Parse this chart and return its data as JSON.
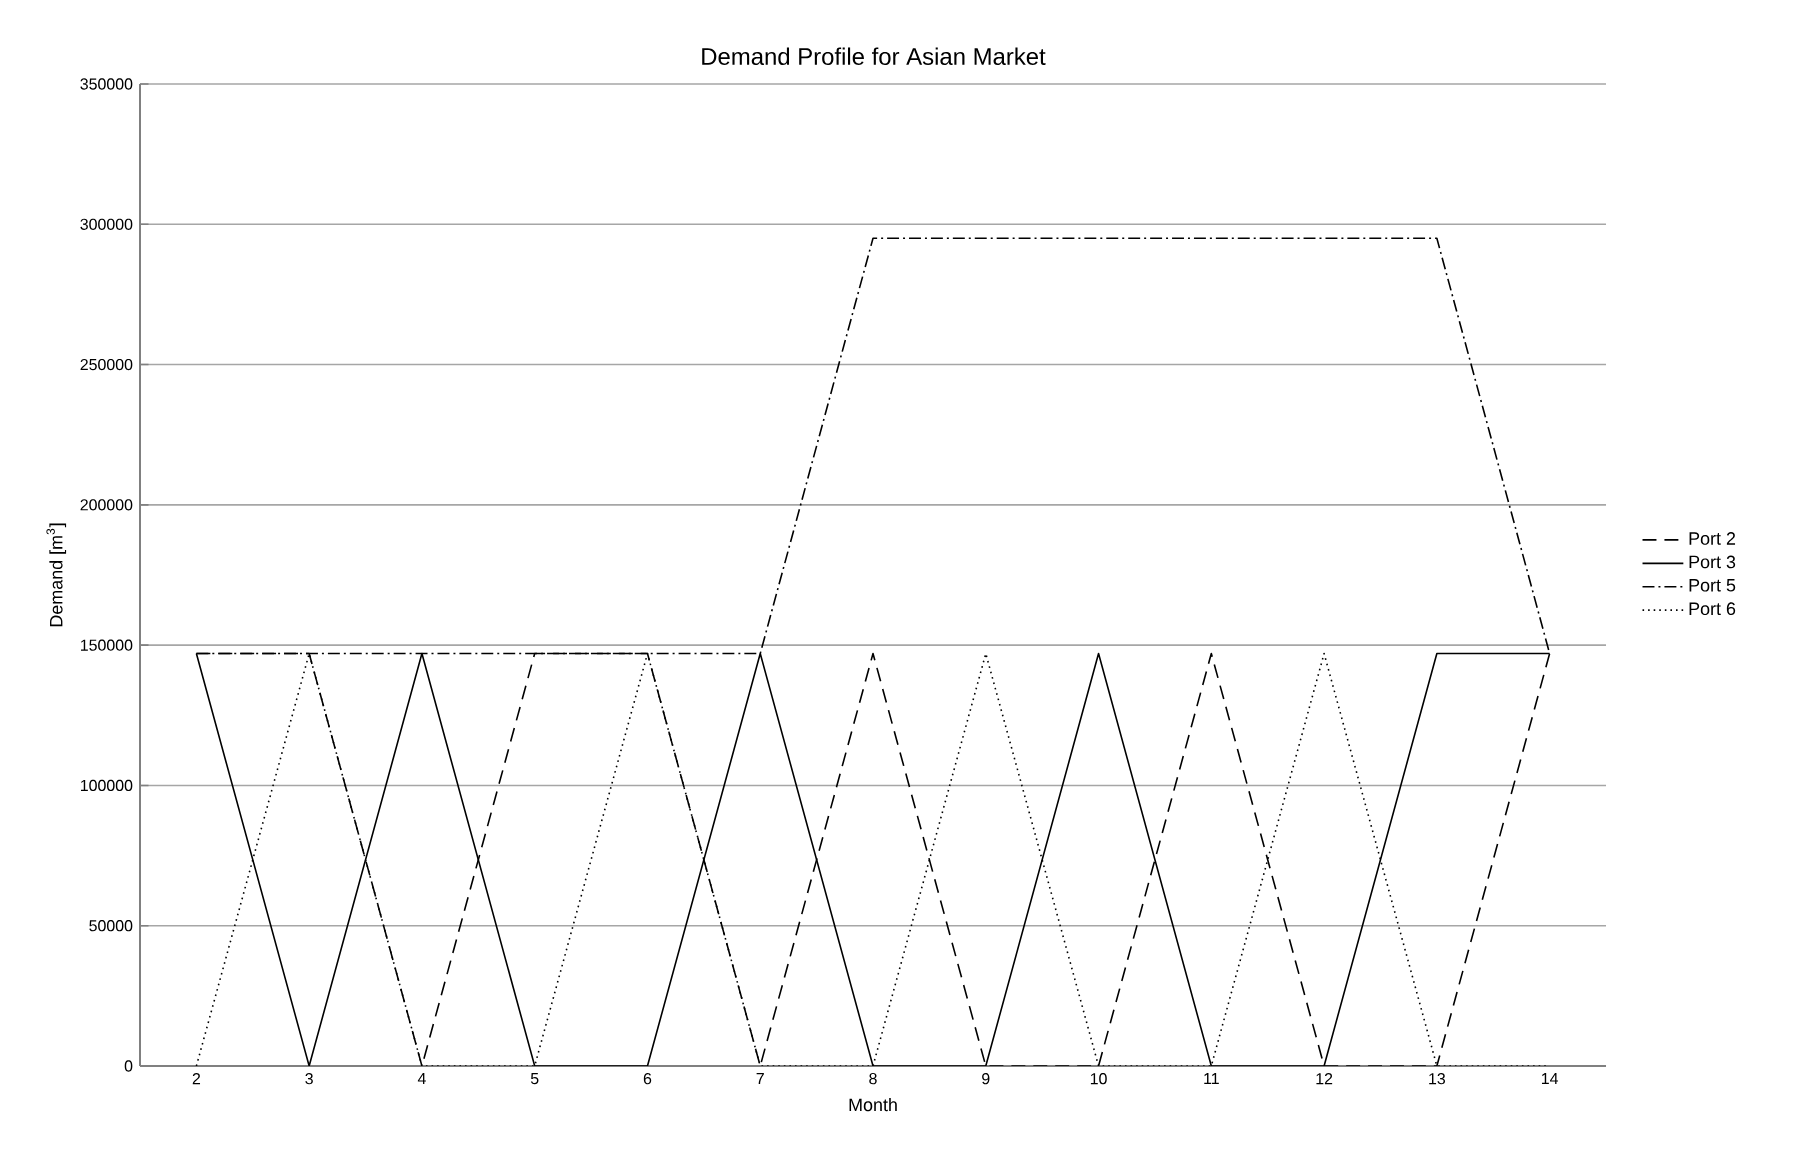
{
  "chart_data": {
    "type": "line",
    "title": "Demand Profile for Asian Market",
    "xlabel": "Month",
    "ylabel": "Demand [m$^{3}$]",
    "categories": [
      "2",
      "3",
      "4",
      "5",
      "6",
      "7",
      "8",
      "9",
      "10",
      "11",
      "12",
      "13",
      "14"
    ],
    "series": [
      {
        "name": "Port 2",
        "color": "#000000",
        "line_style": "dashed",
        "values": [
          147000,
          147000,
          0,
          147000,
          147000,
          0,
          147000,
          0,
          0,
          147000,
          0,
          0,
          147000
        ]
      },
      {
        "name": "Port 3",
        "color": "#000000",
        "line_style": "solid",
        "values": [
          147000,
          0,
          147000,
          0,
          0,
          147000,
          0,
          0,
          147000,
          0,
          0,
          147000,
          147000
        ]
      },
      {
        "name": "Port 5",
        "color": "#000000",
        "line_style": "dashdot",
        "values": [
          147000,
          147000,
          147000,
          147000,
          147000,
          147000,
          295000,
          295000,
          295000,
          295000,
          295000,
          295000,
          147000
        ]
      },
      {
        "name": "Port 6",
        "color": "#000000",
        "line_style": "dotted",
        "values": [
          0,
          147000,
          0,
          0,
          147000,
          0,
          0,
          147000,
          0,
          0,
          147000,
          0,
          0
        ]
      }
    ],
    "ylim": [
      0,
      350000
    ],
    "yticks": [
      0,
      50000,
      100000,
      150000,
      200000,
      250000,
      300000,
      350000
    ],
    "grid": "y",
    "legend": "right",
    "marker": "none"
  }
}
